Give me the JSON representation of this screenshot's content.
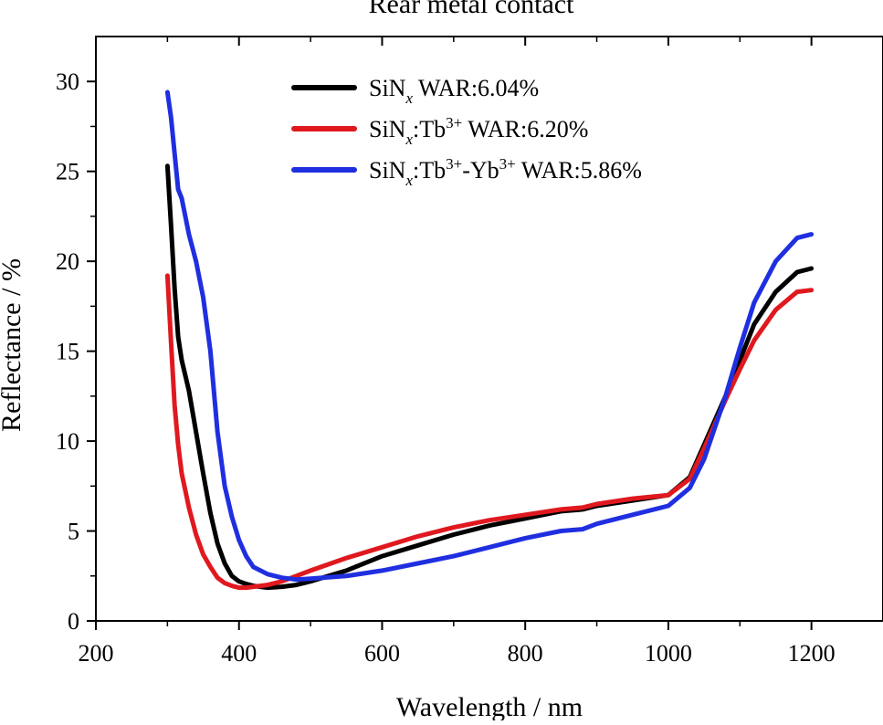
{
  "chart_data": {
    "type": "line",
    "title": "Rear metal contact",
    "xlabel": "Wavelength / nm",
    "ylabel": "Reflectance / %",
    "xlim": [
      200,
      1300
    ],
    "ylim": [
      0,
      32.5
    ],
    "xticks": [
      200,
      400,
      600,
      800,
      1000,
      1200
    ],
    "yticks": [
      0,
      5,
      10,
      15,
      20,
      25,
      30
    ],
    "grid": false,
    "legend_position": "top-center",
    "series": [
      {
        "name": "SiNx WAR:6.04%",
        "legend": {
          "base": "SiN",
          "sub": "x",
          "mid": "",
          "sup1": "",
          "rest": "",
          "sup2": "",
          "tail": " WAR:6.04%"
        },
        "color": "#000000",
        "x": [
          300,
          305,
          310,
          315,
          320,
          330,
          340,
          350,
          360,
          370,
          380,
          390,
          400,
          410,
          420,
          440,
          460,
          480,
          500,
          550,
          600,
          650,
          700,
          750,
          800,
          850,
          880,
          900,
          950,
          1000,
          1030,
          1050,
          1080,
          1100,
          1120,
          1150,
          1180,
          1200
        ],
        "y": [
          25.3,
          22.0,
          18.5,
          15.8,
          14.5,
          12.8,
          10.5,
          8.2,
          6.0,
          4.3,
          3.2,
          2.5,
          2.2,
          2.05,
          1.95,
          1.85,
          1.9,
          2.0,
          2.2,
          2.8,
          3.6,
          4.2,
          4.8,
          5.3,
          5.7,
          6.1,
          6.2,
          6.4,
          6.7,
          7.0,
          8.0,
          9.8,
          12.5,
          14.5,
          16.5,
          18.3,
          19.4,
          19.6
        ]
      },
      {
        "name": "SiNx:Tb3+ WAR:6.20%",
        "legend": {
          "base": "SiN",
          "sub": "x",
          "mid": ":Tb",
          "sup1": "3+",
          "rest": "",
          "sup2": "",
          "tail": " WAR:6.20%"
        },
        "color": "#e0191f",
        "x": [
          300,
          305,
          310,
          315,
          320,
          330,
          340,
          350,
          360,
          370,
          380,
          390,
          400,
          410,
          420,
          440,
          460,
          480,
          500,
          550,
          600,
          650,
          700,
          750,
          800,
          850,
          880,
          900,
          950,
          1000,
          1030,
          1050,
          1080,
          1100,
          1120,
          1150,
          1180,
          1200
        ],
        "y": [
          19.2,
          15.5,
          12.0,
          9.8,
          8.2,
          6.3,
          4.8,
          3.7,
          3.0,
          2.4,
          2.1,
          1.95,
          1.85,
          1.85,
          1.9,
          2.0,
          2.2,
          2.5,
          2.8,
          3.5,
          4.1,
          4.7,
          5.2,
          5.6,
          5.9,
          6.2,
          6.3,
          6.5,
          6.8,
          7.0,
          7.9,
          9.6,
          12.3,
          14.0,
          15.6,
          17.3,
          18.3,
          18.4
        ]
      },
      {
        "name": "SiNx:Tb3+-Yb3+ WAR:5.86%",
        "legend": {
          "base": "SiN",
          "sub": "x",
          "mid": ":Tb",
          "sup1": "3+",
          "rest": "-Yb",
          "sup2": "3+",
          "tail": " WAR:5.86%"
        },
        "color": "#1f2fe0",
        "x": [
          300,
          305,
          310,
          315,
          320,
          330,
          340,
          350,
          360,
          370,
          380,
          390,
          400,
          410,
          420,
          440,
          460,
          480,
          500,
          550,
          600,
          650,
          700,
          750,
          800,
          850,
          880,
          900,
          950,
          1000,
          1030,
          1050,
          1080,
          1100,
          1120,
          1150,
          1180,
          1200
        ],
        "y": [
          29.4,
          28.0,
          26.0,
          24.0,
          23.5,
          21.5,
          20.0,
          18.0,
          15.0,
          10.5,
          7.5,
          5.8,
          4.5,
          3.6,
          3.0,
          2.6,
          2.4,
          2.3,
          2.35,
          2.5,
          2.8,
          3.2,
          3.6,
          4.1,
          4.6,
          5.0,
          5.1,
          5.4,
          5.9,
          6.4,
          7.4,
          9.0,
          12.5,
          15.2,
          17.7,
          20.0,
          21.3,
          21.5
        ]
      }
    ]
  }
}
